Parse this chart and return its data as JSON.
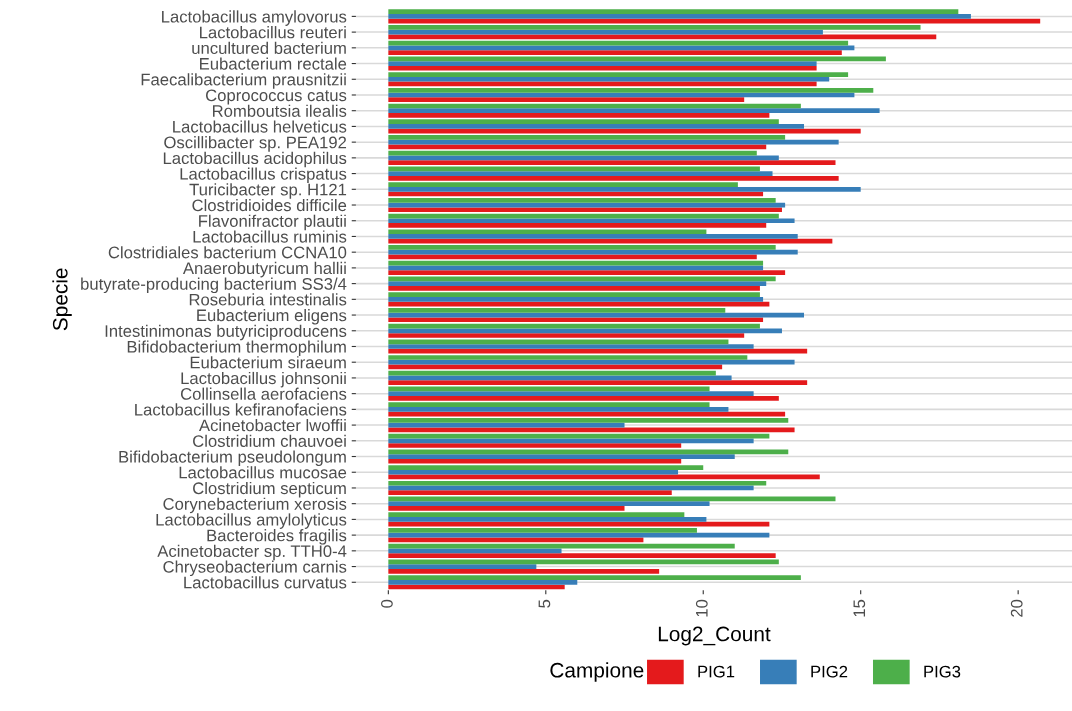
{
  "chart_data": {
    "type": "bar",
    "orientation": "horizontal",
    "xlabel": "Log2_Count",
    "ylabel": "Specie",
    "legend_title": "Campione",
    "legend": "bottom",
    "grid": "y",
    "categories": [
      "Lactobacillus amylovorus",
      "Lactobacillus reuteri",
      "uncultured bacterium",
      "Eubacterium rectale",
      "Faecalibacterium prausnitzii",
      "Coprococcus catus",
      "Romboutsia ilealis",
      "Lactobacillus helveticus",
      "Oscillibacter sp. PEA192",
      "Lactobacillus acidophilus",
      "Lactobacillus crispatus",
      "Turicibacter sp. H121",
      "Clostridioides difficile",
      "Flavonifractor plautii",
      "Lactobacillus ruminis",
      "Clostridiales bacterium CCNA10",
      "Anaerobutyricum hallii",
      "butyrate-producing bacterium SS3/4",
      "Roseburia intestinalis",
      "Eubacterium eligens",
      "Intestinimonas butyriciproducens",
      "Bifidobacterium thermophilum",
      "Eubacterium siraeum",
      "Lactobacillus johnsonii",
      "Collinsella aerofaciens",
      "Lactobacillus kefiranofaciens",
      "Acinetobacter lwoffii",
      "Clostridium chauvoei",
      "Bifidobacterium pseudolongum",
      "Lactobacillus mucosae",
      "Clostridium septicum",
      "Corynebacterium xerosis",
      "Lactobacillus amylolyticus",
      "Bacteroides fragilis",
      "Acinetobacter sp. TTH0-4",
      "Chryseobacterium carnis",
      "Lactobacillus curvatus"
    ],
    "series": [
      {
        "name": "PIG1",
        "color": "#e41a1c",
        "values": [
          20.7,
          17.4,
          14.4,
          13.6,
          13.6,
          11.3,
          12.1,
          15.0,
          12.0,
          14.2,
          14.3,
          11.9,
          12.5,
          12.0,
          14.1,
          11.7,
          12.6,
          11.8,
          12.1,
          11.9,
          11.3,
          13.3,
          10.6,
          13.3,
          12.4,
          12.6,
          12.9,
          9.3,
          9.3,
          13.7,
          9.0,
          7.5,
          12.1,
          8.1,
          12.3,
          8.6,
          5.6
        ]
      },
      {
        "name": "PIG2",
        "color": "#377eb8",
        "values": [
          18.5,
          13.8,
          14.8,
          13.6,
          14.0,
          14.8,
          15.6,
          13.2,
          14.3,
          12.4,
          12.2,
          15.0,
          12.6,
          12.9,
          13.0,
          13.0,
          11.9,
          12.0,
          11.9,
          13.2,
          12.5,
          11.6,
          12.9,
          10.9,
          11.6,
          10.8,
          7.5,
          11.6,
          11.0,
          9.2,
          11.6,
          10.2,
          10.1,
          12.1,
          5.5,
          4.7,
          6.0
        ]
      },
      {
        "name": "PIG3",
        "color": "#4daf4a",
        "values": [
          18.1,
          16.9,
          14.6,
          15.8,
          14.6,
          15.4,
          13.1,
          12.4,
          12.6,
          11.7,
          11.8,
          11.1,
          12.3,
          12.4,
          10.1,
          12.3,
          11.9,
          12.3,
          11.8,
          10.7,
          11.8,
          10.8,
          11.4,
          10.4,
          10.2,
          10.2,
          12.7,
          12.1,
          12.7,
          10.0,
          12.0,
          14.2,
          9.4,
          9.8,
          11.0,
          12.4,
          13.1
        ]
      }
    ],
    "xlim": [
      -1.03,
      21.71
    ],
    "xticks": [
      0,
      5,
      10,
      15,
      20
    ]
  }
}
